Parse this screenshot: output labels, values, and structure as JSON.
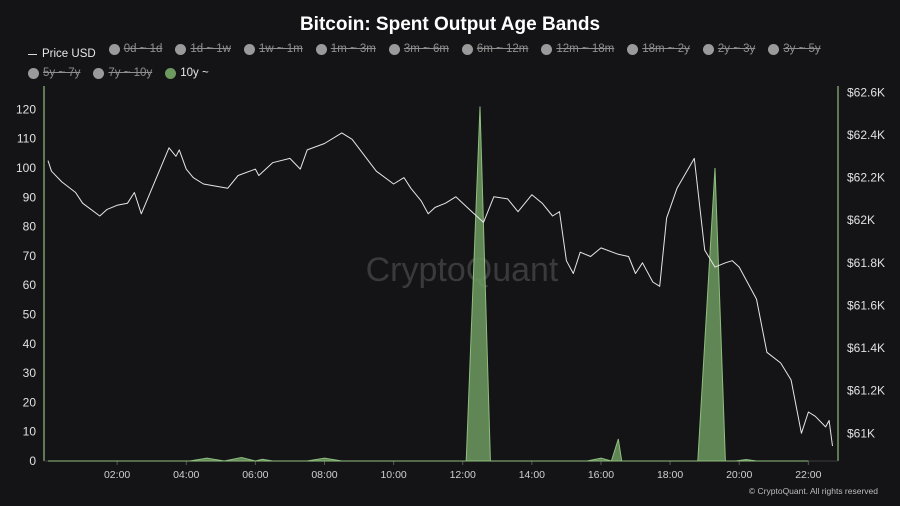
{
  "chart_data": {
    "type": "area",
    "title": "Bitcoin: Spent Output Age Bands",
    "legend": [
      {
        "name": "Price USD",
        "style": "line",
        "active": true
      },
      {
        "name": "0d ~ 1d",
        "style": "dot",
        "active": false
      },
      {
        "name": "1d ~ 1w",
        "style": "dot",
        "active": false
      },
      {
        "name": "1w ~ 1m",
        "style": "dot",
        "active": false
      },
      {
        "name": "1m ~ 3m",
        "style": "dot",
        "active": false
      },
      {
        "name": "3m ~ 6m",
        "style": "dot",
        "active": false
      },
      {
        "name": "6m ~ 12m",
        "style": "dot",
        "active": false
      },
      {
        "name": "12m ~ 18m",
        "style": "dot",
        "active": false
      },
      {
        "name": "18m ~ 2y",
        "style": "dot",
        "active": false
      },
      {
        "name": "2y ~ 3y",
        "style": "dot",
        "active": false
      },
      {
        "name": "3y ~ 5y",
        "style": "dot",
        "active": false
      },
      {
        "name": "5y ~ 7y",
        "style": "dot",
        "active": false
      },
      {
        "name": "7y ~ 10y",
        "style": "dot",
        "active": false
      },
      {
        "name": "10y ~",
        "style": "dot",
        "active": true
      }
    ],
    "colors": {
      "price": "#e6e6e6",
      "band_10y": "#6c9a5f",
      "band_10y_line": "#8fbf7f",
      "inactive_dot": "#9a9a9a",
      "axis": "#8fbf7f"
    },
    "x_ticks": [
      "02:00",
      "04:00",
      "06:00",
      "08:00",
      "10:00",
      "12:00",
      "14:00",
      "16:00",
      "18:00",
      "20:00",
      "22:00"
    ],
    "x_range": [
      0.0,
      22.8
    ],
    "y_left": {
      "ticks": [
        "0",
        "10",
        "20",
        "30",
        "40",
        "50",
        "60",
        "70",
        "80",
        "90",
        "100",
        "110",
        "120"
      ],
      "range": [
        0,
        128
      ]
    },
    "y_right": {
      "ticks": [
        "$61K",
        "$61.2K",
        "$61.4K",
        "$61.6K",
        "$61.8K",
        "$62K",
        "$62.2K",
        "$62.4K",
        "$62.6K"
      ],
      "range": [
        60870,
        62630
      ]
    },
    "series": [
      {
        "name": "10y ~",
        "axis": "left",
        "points": [
          [
            0,
            0
          ],
          [
            4.1,
            0
          ],
          [
            4.6,
            1
          ],
          [
            5.1,
            0
          ],
          [
            5.6,
            1.2
          ],
          [
            6.0,
            0
          ],
          [
            6.2,
            0.6
          ],
          [
            6.5,
            0
          ],
          [
            7.5,
            0
          ],
          [
            8.0,
            1
          ],
          [
            8.5,
            0
          ],
          [
            12.1,
            0
          ],
          [
            12.5,
            121
          ],
          [
            12.8,
            0
          ],
          [
            15.6,
            0
          ],
          [
            16.0,
            1
          ],
          [
            16.3,
            0
          ],
          [
            16.5,
            7.5
          ],
          [
            16.6,
            0
          ],
          [
            18.8,
            0
          ],
          [
            19.3,
            100
          ],
          [
            19.6,
            0
          ],
          [
            19.9,
            0
          ],
          [
            20.2,
            0.5
          ],
          [
            20.5,
            0
          ],
          [
            22.0,
            0
          ]
        ]
      },
      {
        "name": "Price USD",
        "axis": "right",
        "points": [
          [
            0.0,
            62280
          ],
          [
            0.1,
            62230
          ],
          [
            0.4,
            62180
          ],
          [
            0.8,
            62130
          ],
          [
            1.0,
            62080
          ],
          [
            1.5,
            62020
          ],
          [
            1.7,
            62050
          ],
          [
            2.0,
            62070
          ],
          [
            2.3,
            62080
          ],
          [
            2.5,
            62130
          ],
          [
            2.7,
            62030
          ],
          [
            3.5,
            62340
          ],
          [
            3.7,
            62300
          ],
          [
            3.8,
            62330
          ],
          [
            4.0,
            62240
          ],
          [
            4.2,
            62200
          ],
          [
            4.5,
            62170
          ],
          [
            5.2,
            62150
          ],
          [
            5.5,
            62210
          ],
          [
            6.0,
            62240
          ],
          [
            6.1,
            62210
          ],
          [
            6.5,
            62270
          ],
          [
            7.0,
            62290
          ],
          [
            7.3,
            62240
          ],
          [
            7.5,
            62330
          ],
          [
            8.0,
            62360
          ],
          [
            8.5,
            62410
          ],
          [
            8.8,
            62380
          ],
          [
            9.5,
            62230
          ],
          [
            10.0,
            62170
          ],
          [
            10.3,
            62200
          ],
          [
            10.5,
            62150
          ],
          [
            10.8,
            62090
          ],
          [
            11.0,
            62030
          ],
          [
            11.2,
            62060
          ],
          [
            11.5,
            62080
          ],
          [
            11.8,
            62110
          ],
          [
            12.2,
            62050
          ],
          [
            12.6,
            61990
          ],
          [
            12.9,
            62110
          ],
          [
            13.3,
            62100
          ],
          [
            13.6,
            62040
          ],
          [
            14.0,
            62120
          ],
          [
            14.3,
            62080
          ],
          [
            14.6,
            62020
          ],
          [
            14.8,
            62040
          ],
          [
            15.0,
            61810
          ],
          [
            15.2,
            61750
          ],
          [
            15.4,
            61850
          ],
          [
            15.7,
            61830
          ],
          [
            16.0,
            61870
          ],
          [
            16.5,
            61840
          ],
          [
            16.8,
            61830
          ],
          [
            17.0,
            61750
          ],
          [
            17.2,
            61800
          ],
          [
            17.5,
            61710
          ],
          [
            17.7,
            61690
          ],
          [
            17.9,
            62010
          ],
          [
            18.2,
            62150
          ],
          [
            18.7,
            62290
          ],
          [
            19.0,
            61860
          ],
          [
            19.3,
            61780
          ],
          [
            19.6,
            61800
          ],
          [
            19.8,
            61810
          ],
          [
            20.0,
            61780
          ],
          [
            20.5,
            61630
          ],
          [
            20.8,
            61380
          ],
          [
            21.2,
            61330
          ],
          [
            21.5,
            61250
          ],
          [
            21.8,
            61000
          ],
          [
            22.0,
            61100
          ],
          [
            22.2,
            61080
          ],
          [
            22.5,
            61030
          ],
          [
            22.6,
            61060
          ],
          [
            22.7,
            60940
          ]
        ]
      }
    ],
    "watermark": "CryptoQuant",
    "copyright": "© CryptoQuant. All rights reserved"
  }
}
